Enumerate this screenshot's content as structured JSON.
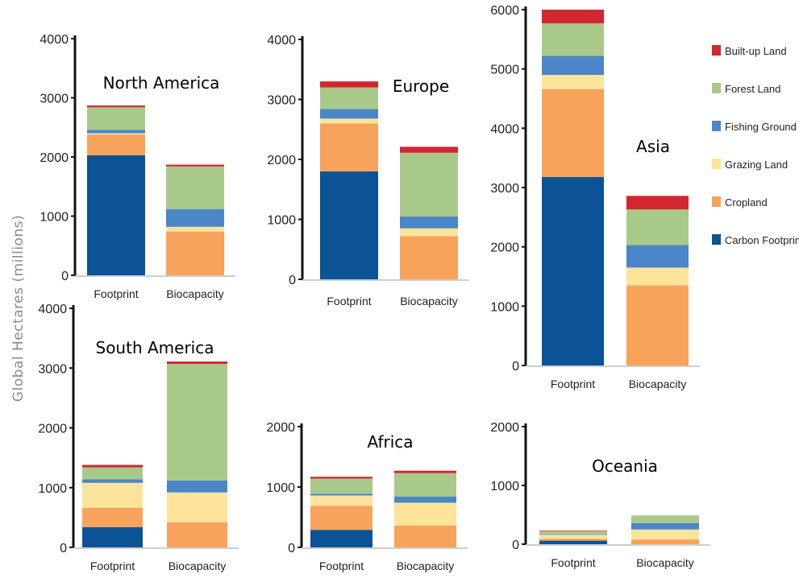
{
  "chart_data": {
    "type": "bar",
    "stacked": true,
    "ylabel": "Global Hectares (millions)",
    "categories": [
      "Footprint",
      "Biocapacity"
    ],
    "legend": [
      {
        "name": "Built-up Land",
        "color": "#d22630"
      },
      {
        "name": "Forest Land",
        "color": "#a9c98a"
      },
      {
        "name": "Fishing Ground",
        "color": "#4a86c8"
      },
      {
        "name": "Grazing Land",
        "color": "#fde49a"
      },
      {
        "name": "Cropland",
        "color": "#f7a35c"
      },
      {
        "name": "Carbon Footprint",
        "color": "#0b5394"
      }
    ],
    "charts": [
      {
        "title": "North America",
        "ylim": [
          0,
          4000
        ],
        "yticks": [
          0,
          1000,
          2000,
          3000,
          4000
        ],
        "stack_order": [
          "Carbon Footprint",
          "Cropland",
          "Grazing Land",
          "Fishing Ground",
          "Forest Land",
          "Built-up Land"
        ],
        "bars": [
          {
            "category": "Footprint",
            "values": [
              2030,
              350,
              20,
              60,
              380,
              30
            ]
          },
          {
            "category": "Biocapacity",
            "values": [
              0,
              740,
              80,
              300,
              720,
              30
            ]
          }
        ]
      },
      {
        "title": "Europe",
        "ylim": [
          0,
          4000
        ],
        "yticks": [
          0,
          1000,
          2000,
          3000,
          4000
        ],
        "stack_order": [
          "Carbon Footprint",
          "Cropland",
          "Grazing Land",
          "Fishing Ground",
          "Forest Land",
          "Built-up Land"
        ],
        "bars": [
          {
            "category": "Footprint",
            "values": [
              1800,
              800,
              80,
              160,
              360,
              100
            ]
          },
          {
            "category": "Biocapacity",
            "values": [
              0,
              720,
              130,
              200,
              1060,
              100
            ]
          }
        ]
      },
      {
        "title": "Asia",
        "ylim": [
          0,
          6000
        ],
        "yticks": [
          0,
          1000,
          2000,
          3000,
          4000,
          5000,
          6000
        ],
        "stack_order": [
          "Carbon Footprint",
          "Cropland",
          "Grazing Land",
          "Fishing Ground",
          "Forest Land",
          "Built-up Land"
        ],
        "bars": [
          {
            "category": "Footprint",
            "values": [
              3180,
              1480,
              240,
              320,
              550,
              230
            ]
          },
          {
            "category": "Biocapacity",
            "values": [
              0,
              1350,
              300,
              380,
              600,
              230
            ]
          }
        ]
      },
      {
        "title": "South America",
        "ylim": [
          0,
          4000
        ],
        "yticks": [
          0,
          1000,
          2000,
          3000,
          4000
        ],
        "stack_order": [
          "Carbon Footprint",
          "Cropland",
          "Grazing Land",
          "Fishing Ground",
          "Forest Land",
          "Built-up Land"
        ],
        "bars": [
          {
            "category": "Footprint",
            "values": [
              340,
              320,
              420,
              60,
              200,
              40
            ]
          },
          {
            "category": "Biocapacity",
            "values": [
              0,
              420,
              500,
              200,
              1950,
              40
            ]
          }
        ]
      },
      {
        "title": "Africa",
        "ylim": [
          0,
          2000
        ],
        "yticks": [
          0,
          1000,
          2000
        ],
        "stack_order": [
          "Carbon Footprint",
          "Cropland",
          "Grazing Land",
          "Fishing Ground",
          "Forest Land",
          "Built-up Land"
        ],
        "bars": [
          {
            "category": "Footprint",
            "values": [
              290,
              400,
              170,
              30,
              250,
              30
            ]
          },
          {
            "category": "Biocapacity",
            "values": [
              0,
              360,
              380,
              100,
              390,
              40
            ]
          }
        ]
      },
      {
        "title": "Oceania",
        "ylim": [
          0,
          2000
        ],
        "yticks": [
          0,
          1000,
          2000
        ],
        "stack_order": [
          "Carbon Footprint",
          "Cropland",
          "Grazing Land",
          "Fishing Ground",
          "Forest Land",
          "Built-up Land"
        ],
        "bars": [
          {
            "category": "Footprint",
            "values": [
              60,
              30,
              70,
              10,
              50,
              10
            ]
          },
          {
            "category": "Biocapacity",
            "values": [
              0,
              80,
              170,
              110,
              130,
              0
            ]
          }
        ]
      }
    ]
  }
}
